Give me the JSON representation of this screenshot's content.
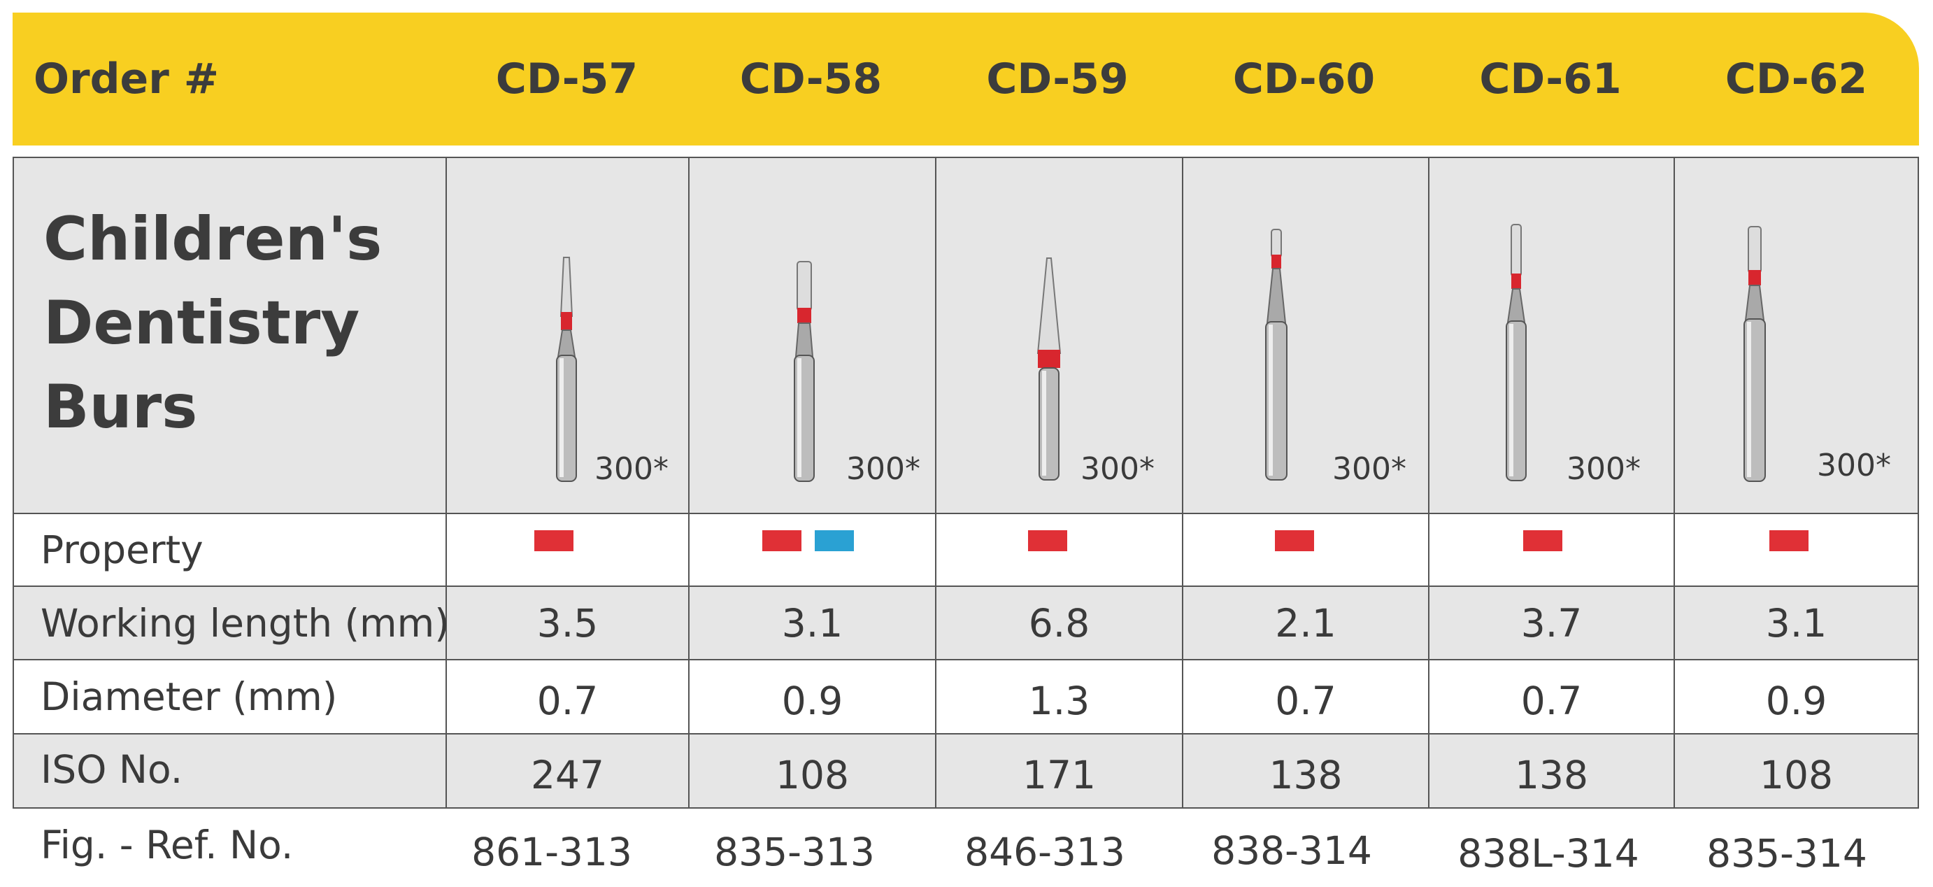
{
  "header": {
    "label": "Order #",
    "orders": [
      "CD-57",
      "CD-58",
      "CD-59",
      "CD-60",
      "CD-61",
      "CD-62"
    ]
  },
  "product": {
    "title_lines": [
      "Children's",
      "Dentistry",
      "Burs"
    ],
    "grit_labels": [
      "300*",
      "300*",
      "300*",
      "300*",
      "300*",
      "300*"
    ]
  },
  "rows": {
    "property": {
      "label": "Property",
      "colors": [
        [
          "#e03036"
        ],
        [
          "#e03036",
          "#2aa1d3"
        ],
        [
          "#e03036"
        ],
        [
          "#e03036"
        ],
        [
          "#e03036"
        ],
        [
          "#e03036"
        ]
      ]
    },
    "working_length": {
      "label": "Working length (mm)",
      "values": [
        "3.5",
        "3.1",
        "6.8",
        "2.1",
        "3.7",
        "3.1"
      ]
    },
    "diameter": {
      "label": "Diameter (mm)",
      "values": [
        "0.7",
        "0.9",
        "1.3",
        "0.7",
        "0.7",
        "0.9"
      ]
    },
    "iso": {
      "label": "ISO No.",
      "values": [
        "247",
        "108",
        "171",
        "138",
        "138",
        "108"
      ]
    },
    "fig_ref": {
      "label": "Fig. - Ref. No.",
      "values": [
        "861-313",
        "835-313",
        "846-313",
        "838-314",
        "838L-314",
        "835-314"
      ]
    }
  },
  "colors": {
    "header_yellow": "#f8cf21",
    "band_gray": "#e6e6e6",
    "red_ring": "#e03036",
    "blue_ring": "#2aa1d3"
  }
}
